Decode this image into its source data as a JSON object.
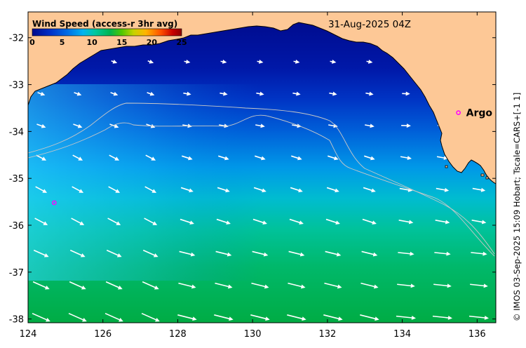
{
  "map": {
    "date": "31-Aug-2025 04Z",
    "lon_ticks": [
      124,
      126,
      128,
      130,
      132,
      134,
      136
    ],
    "lat_ticks": [
      -32,
      -33,
      -34,
      -35,
      -36,
      -37,
      -38
    ],
    "lon_range": [
      124,
      136.5
    ],
    "lat_range": [
      -38.08,
      -31.45
    ],
    "land_color": "#fdc896",
    "credit": "© IMOS 03-Sep-2025 15:09 Hobart; Tscale=CARS+[-1 1]"
  },
  "legend": {
    "title": "Wind Speed (access-r 3hr avg)",
    "ticks": [
      "0",
      "5",
      "10",
      "15",
      "20",
      "25"
    ],
    "tick_values": [
      0,
      5,
      10,
      15,
      20,
      25
    ],
    "colormap": [
      "#000a8c",
      "#0030c8",
      "#0070e6",
      "#00b4f0",
      "#00c8a0",
      "#00b450",
      "#50c800",
      "#c8d200",
      "#ffb400",
      "#ff5000",
      "#c80000",
      "#8c0000"
    ]
  },
  "argo_floats": [
    {
      "name": "",
      "lon": 124.7,
      "lat": -35.52
    },
    {
      "name": "Argo",
      "lon": 135.5,
      "lat": -33.6
    }
  ]
}
